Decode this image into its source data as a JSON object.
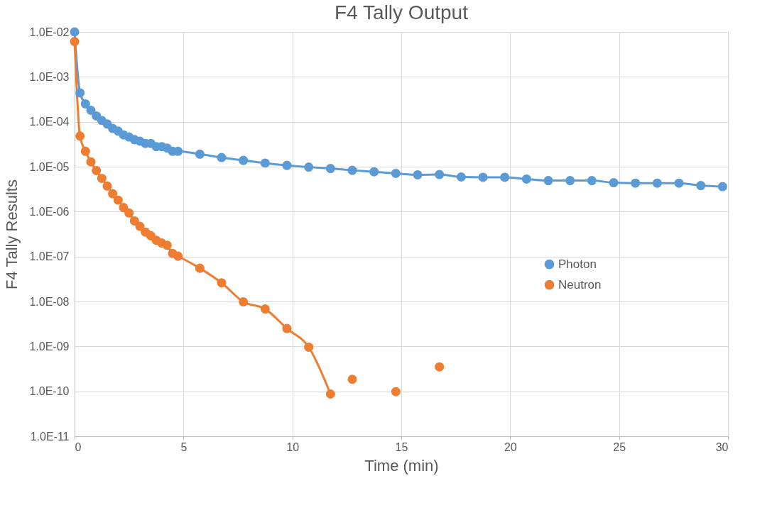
{
  "chart_data": {
    "type": "line",
    "title": "F4 Tally Output",
    "xlabel": "Time (min)",
    "ylabel": "F4 Tally Results",
    "x": [
      0,
      0.25,
      0.5,
      0.75,
      1,
      1.25,
      1.5,
      1.75,
      2,
      2.25,
      2.5,
      2.75,
      3,
      3.25,
      3.5,
      3.75,
      4,
      4.25,
      4.5,
      4.75,
      5.75,
      6.75,
      7.75,
      8.75,
      9.75,
      10.75,
      11.75,
      12.75,
      13.75,
      14.75,
      15.75,
      16.75,
      17.75,
      18.75,
      19.75,
      20.75,
      21.75,
      22.75,
      23.75,
      24.75,
      25.75,
      26.75,
      27.75,
      28.75,
      29.75
    ],
    "series": [
      {
        "name": "Photon",
        "color": "#5b9bd5",
        "values": [
          0.01,
          0.00044,
          0.00025,
          0.00018,
          0.000135,
          0.000107,
          8.9e-05,
          7.1e-05,
          6.2e-05,
          5.1e-05,
          4.6e-05,
          4e-05,
          3.7e-05,
          3.3e-05,
          3.3e-05,
          2.8e-05,
          2.8e-05,
          2.6e-05,
          2.2e-05,
          2.2e-05,
          1.9e-05,
          1.6e-05,
          1.38e-05,
          1.2e-05,
          1.07e-05,
          9.8e-06,
          9.1e-06,
          8.3e-06,
          7.7e-06,
          7.1e-06,
          6.6e-06,
          6.7e-06,
          5.9e-06,
          5.8e-06,
          5.8e-06,
          5.3e-06,
          4.9e-06,
          4.9e-06,
          4.9e-06,
          4.4e-06,
          4.3e-06,
          4.3e-06,
          4.3e-06,
          3.8e-06,
          3.6e-06
        ]
      },
      {
        "name": "Neutron",
        "color": "#ed7d31",
        "x": [
          0,
          0.25,
          0.5,
          0.75,
          1,
          1.25,
          1.5,
          1.75,
          2,
          2.25,
          2.5,
          2.75,
          3,
          3.25,
          3.5,
          3.75,
          4,
          4.25,
          4.5,
          4.75,
          5.75,
          6.75,
          7.75,
          8.75,
          9.75,
          10.75,
          11.75,
          12.25,
          12.75,
          13.75,
          14.75,
          15.75,
          16.75
        ],
        "values": [
          0.0061,
          4.8e-05,
          2.2e-05,
          1.28e-05,
          8.2e-06,
          5.5e-06,
          3.7e-06,
          2.5e-06,
          1.8e-06,
          1.23e-06,
          9.3e-07,
          6.2e-07,
          4.7e-07,
          3.5e-07,
          2.9e-07,
          2.3e-07,
          2e-07,
          1.78e-07,
          1.17e-07,
          1.02e-07,
          5.5e-08,
          2.6e-08,
          9.8e-09,
          6.8e-09,
          2.5e-09,
          9.6e-10,
          8.7e-11,
          null,
          1.85e-10,
          null,
          9.8e-11,
          null,
          3.5e-10
        ]
      }
    ],
    "log": true,
    "xlim": [
      0,
      30
    ],
    "xticks": [
      0,
      5,
      10,
      15,
      20,
      25,
      30
    ],
    "ylim": [
      1e-11,
      0.01
    ],
    "yticks": [
      {
        "value": 1e-11,
        "label": "1.0E-11"
      },
      {
        "value": 1e-10,
        "label": "1.0E-10"
      },
      {
        "value": 1e-09,
        "label": "1.0E-09"
      },
      {
        "value": 1e-08,
        "label": "1.0E-08"
      },
      {
        "value": 1e-07,
        "label": "1.0E-07"
      },
      {
        "value": 1e-06,
        "label": "1.0E-06"
      },
      {
        "value": 1e-05,
        "label": "1.0E-05"
      },
      {
        "value": 0.0001,
        "label": "1.0E-04"
      },
      {
        "value": 0.001,
        "label": "1.0E-03"
      },
      {
        "value": 0.01,
        "label": "1.0E-02"
      }
    ],
    "grid": true,
    "legend": "right",
    "marker": "circle",
    "line_style": "solid"
  }
}
